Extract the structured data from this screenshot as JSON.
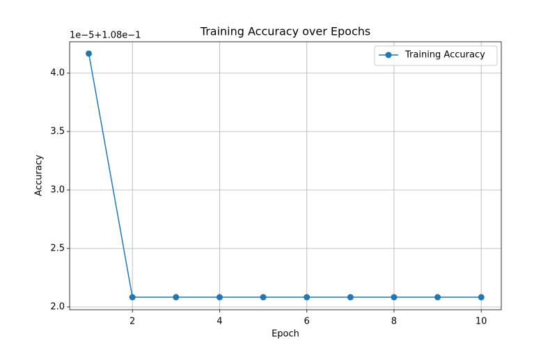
{
  "chart_data": {
    "type": "line",
    "title": "Training Accuracy over Epochs",
    "x_label": "Epoch",
    "y_label": "Accuracy",
    "y_offset_text": "1e−5+1.08e−1",
    "x": [
      1,
      2,
      3,
      4,
      5,
      6,
      7,
      8,
      9,
      10
    ],
    "series": [
      {
        "name": "Training Accuracy",
        "color": "#1f77b4",
        "values": [
          4.167,
          2.083,
          2.083,
          2.083,
          2.083,
          2.083,
          2.083,
          2.083,
          2.083,
          2.083
        ]
      }
    ],
    "xlim": [
      0.56,
      10.46
    ],
    "ylim": [
      1.976,
      4.268
    ],
    "xticks": [
      2,
      4,
      6,
      8,
      10
    ],
    "yticks": [
      {
        "value": 2,
        "label": "2.0"
      },
      {
        "value": 2.5,
        "label": "2.5"
      },
      {
        "value": 3,
        "label": "3.0"
      },
      {
        "value": 3.5,
        "label": "3.5"
      },
      {
        "value": 4,
        "label": "4.0"
      }
    ],
    "grid": true,
    "legend": "upper right"
  }
}
